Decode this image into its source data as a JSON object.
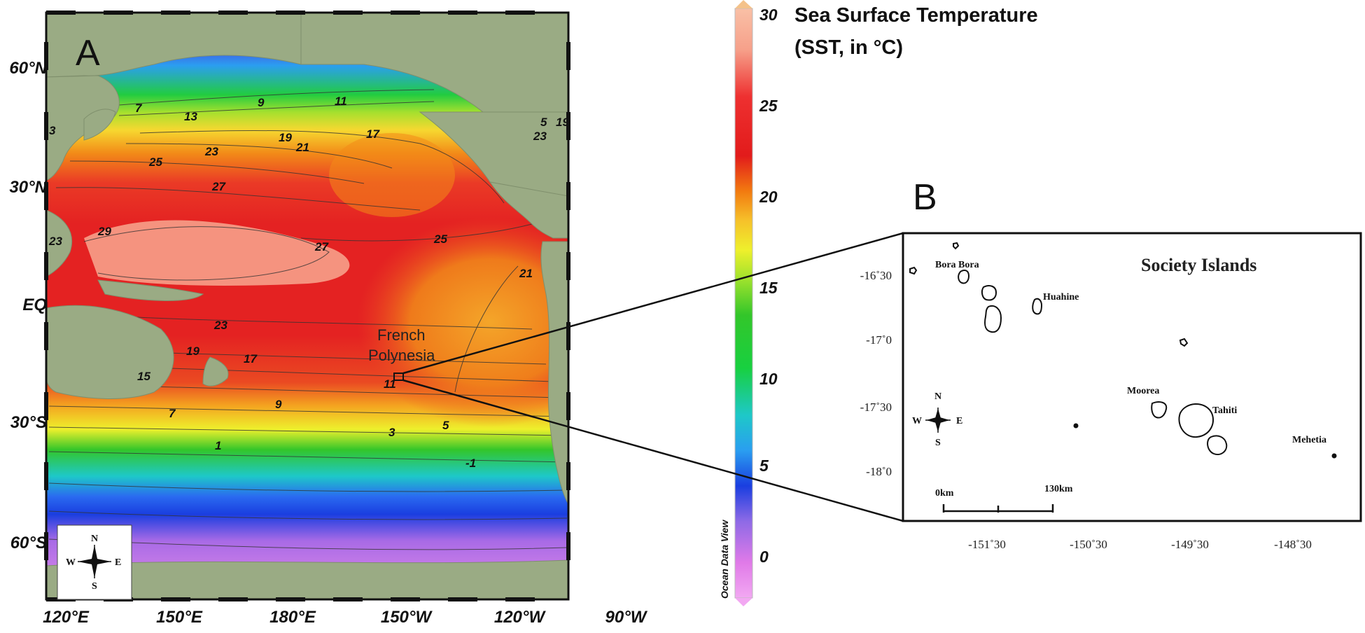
{
  "panel_a": {
    "letter": "A",
    "lat_labels": [
      "60°N",
      "30°N",
      "EQ",
      "30°S",
      "60°S"
    ],
    "lon_labels": [
      "120°E",
      "150°E",
      "180°E",
      "150°W",
      "120°W",
      "90°W"
    ],
    "isotherm_labels": [
      "9",
      "11",
      "7",
      "13",
      "19",
      "21",
      "17",
      "23",
      "25",
      "27",
      "29",
      "27",
      "25",
      "21",
      "23",
      "19",
      "17",
      "15",
      "11",
      "9",
      "7",
      "3",
      "5",
      "1",
      "-1",
      "5",
      "19",
      "23",
      "3",
      "23"
    ],
    "location_label_line1": "French",
    "location_label_line2": "Polynesia",
    "watermark": "Ocean Data View",
    "compass": {
      "n": "N",
      "s": "S",
      "e": "E",
      "w": "W"
    }
  },
  "colorbar": {
    "title_line1": "Sea Surface Temperature",
    "title_line2": "(SST, in °C)",
    "ticks": [
      "30",
      "25",
      "20",
      "15",
      "10",
      "5",
      "0"
    ],
    "colors": [
      "#f9c0a6",
      "#f6a08a",
      "#ee3030",
      "#e21b1b",
      "#f27a10",
      "#f6c12a",
      "#eef02c",
      "#9ee22d",
      "#33c62a",
      "#18d040",
      "#1ec8c8",
      "#2a9ef0",
      "#1a3ee0",
      "#8e6ae6",
      "#e07ae8",
      "#f2a8f2"
    ]
  },
  "panel_b": {
    "letter": "B",
    "title": "Society Islands",
    "lat_ticks": [
      "-16˚30",
      "-17˚0",
      "-17˚30",
      "-18˚0"
    ],
    "lon_ticks": [
      "-151˚30",
      "-150˚30",
      "-149˚30",
      "-148˚30"
    ],
    "islands": [
      "Bora Bora",
      "Huahine",
      "Moorea",
      "Tahiti",
      "Mehetia"
    ],
    "scale_start": "0km",
    "scale_end": "130km",
    "compass": {
      "n": "N",
      "s": "S",
      "e": "E",
      "w": "W"
    }
  },
  "theme": {
    "land": "#9aab84",
    "warm_pool": "#f6a08a",
    "ocean_red": "#e62626"
  }
}
